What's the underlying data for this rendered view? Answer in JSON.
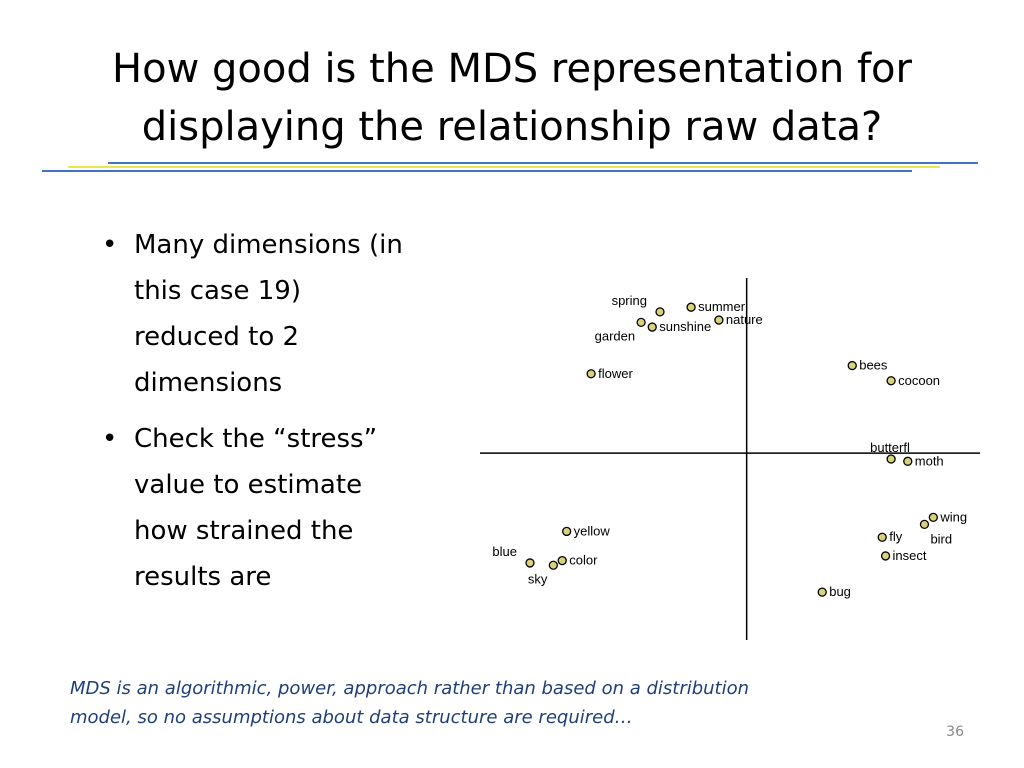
{
  "slide": {
    "title_lines": [
      "How good is the MDS representation for",
      "displaying the relationship raw data?"
    ],
    "bullets": [
      [
        "Many dimensions (in",
        "this case 19)",
        "reduced to 2",
        "dimensions"
      ],
      [
        "Check the “stress”",
        "value to estimate",
        "how strained the",
        "results are"
      ]
    ],
    "footnote_lines": [
      "MDS is an algorithmic, power, approach rather than based on a distribution",
      "model, so no assumptions about data structure are required…"
    ],
    "slide_number": "36"
  },
  "colors": {
    "rule_blue": "#4472c4",
    "rule_yellow": "#e8e84a",
    "marker_fill": "#d8d27a",
    "footnote_text": "#1f3f7a"
  },
  "chart_data": {
    "type": "scatter",
    "title": "",
    "xlabel": "",
    "ylabel": "",
    "axes_crossing": [
      0,
      0
    ],
    "xlim": [
      -2.4,
      2.1
    ],
    "ylim": [
      -1.6,
      1.5
    ],
    "points": [
      {
        "label": "spring",
        "x": -0.78,
        "y": 1.21,
        "label_side": "above-left"
      },
      {
        "label": "summer",
        "x": -0.5,
        "y": 1.25,
        "label_side": "right"
      },
      {
        "label": "nature",
        "x": -0.25,
        "y": 1.14,
        "label_side": "right"
      },
      {
        "label": "garden",
        "x": -0.95,
        "y": 1.12,
        "label_side": "below-left"
      },
      {
        "label": "sunshine",
        "x": -0.85,
        "y": 1.08,
        "label_side": "right"
      },
      {
        "label": "flower",
        "x": -1.4,
        "y": 0.68,
        "label_side": "right"
      },
      {
        "label": "bees",
        "x": 0.95,
        "y": 0.75,
        "label_side": "right"
      },
      {
        "label": "cocoon",
        "x": 1.3,
        "y": 0.62,
        "label_side": "right"
      },
      {
        "label": "butterfl",
        "x": 1.3,
        "y": -0.05,
        "label_side": "above"
      },
      {
        "label": "moth",
        "x": 1.45,
        "y": -0.07,
        "label_side": "right"
      },
      {
        "label": "wing",
        "x": 1.68,
        "y": -0.55,
        "label_side": "right"
      },
      {
        "label": "bird",
        "x": 1.6,
        "y": -0.61,
        "label_side": "below-right"
      },
      {
        "label": "fly",
        "x": 1.22,
        "y": -0.72,
        "label_side": "right"
      },
      {
        "label": "insect",
        "x": 1.25,
        "y": -0.88,
        "label_side": "right"
      },
      {
        "label": "bug",
        "x": 0.68,
        "y": -1.19,
        "label_side": "right"
      },
      {
        "label": "yellow",
        "x": -1.62,
        "y": -0.67,
        "label_side": "right"
      },
      {
        "label": "color",
        "x": -1.66,
        "y": -0.92,
        "label_side": "right"
      },
      {
        "label": "blue",
        "x": -1.95,
        "y": -0.94,
        "label_side": "above-left"
      },
      {
        "label": "sky",
        "x": -1.74,
        "y": -0.96,
        "label_side": "below-left"
      }
    ]
  }
}
